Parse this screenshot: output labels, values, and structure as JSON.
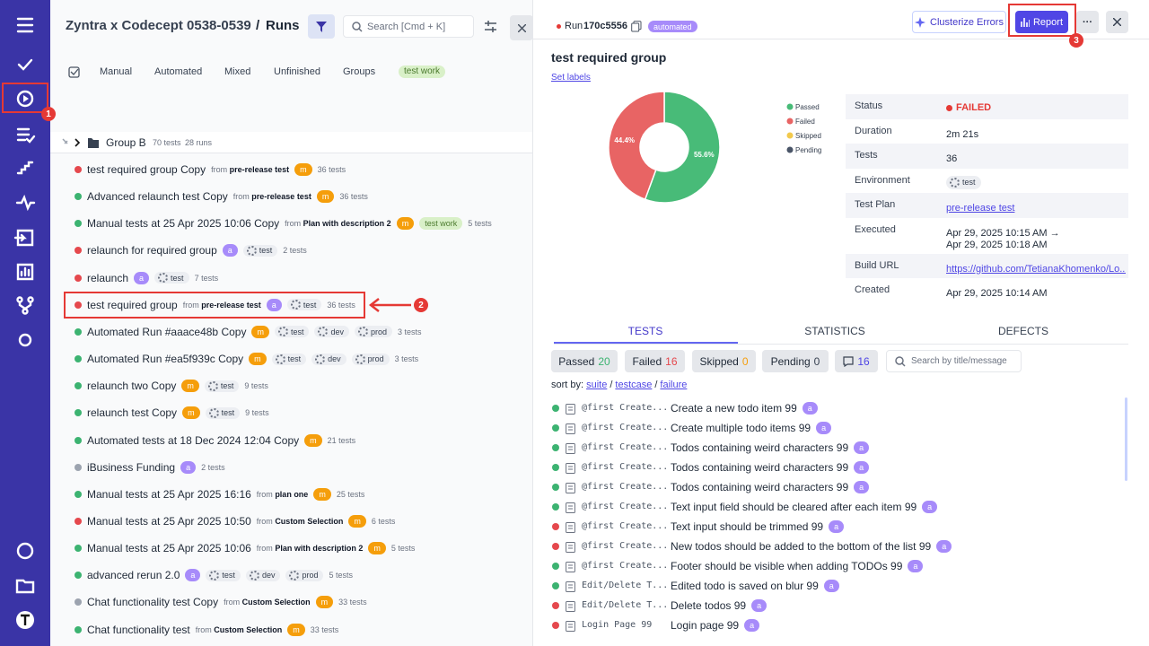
{
  "header": {
    "project": "Zyntra x Codecept 0538-0539",
    "separator": "/",
    "page": "Runs",
    "search_placeholder": "Search [Cmd + K]"
  },
  "filters": [
    "Manual",
    "Automated",
    "Mixed",
    "Unfinished",
    "Groups",
    "test work"
  ],
  "group": {
    "name": "Group B",
    "tests": "70 tests",
    "runs": "28 runs"
  },
  "from_label": "from",
  "runs": [
    {
      "status": "failed",
      "title": "test required group Copy",
      "source": "pre-release test",
      "badge": "m",
      "tags": [],
      "tests": "36 tests"
    },
    {
      "status": "passed",
      "title": "Advanced relaunch test Copy",
      "source": "pre-release test",
      "badge": "m",
      "tags": [],
      "tests": "36 tests"
    },
    {
      "status": "passed",
      "title": "Manual tests at 25 Apr 2025 10:06 Copy",
      "source": "Plan with description 2",
      "badge": "m",
      "label": "test work",
      "tags": [],
      "tests": "5 tests"
    },
    {
      "status": "failed",
      "title": "relaunch for required group",
      "badge": "a",
      "tags": [
        "test"
      ],
      "tests": "2 tests"
    },
    {
      "status": "failed",
      "title": "relaunch",
      "badge": "a",
      "tags": [
        "test"
      ],
      "tests": "7 tests"
    },
    {
      "status": "failed",
      "title": "test required group",
      "source": "pre-release test",
      "badge": "a",
      "tags": [
        "test"
      ],
      "tests": "36 tests"
    },
    {
      "status": "passed",
      "title": "Automated Run #aaace48b Copy",
      "badge": "m",
      "tags": [
        "test",
        "dev",
        "prod"
      ],
      "tests": "3 tests"
    },
    {
      "status": "passed",
      "title": "Automated Run #ea5f939c Copy",
      "badge": "m",
      "tags": [
        "test",
        "dev",
        "prod"
      ],
      "tests": "3 tests"
    },
    {
      "status": "passed",
      "title": "relaunch two Copy",
      "badge": "m",
      "tags": [
        "test"
      ],
      "tests": "9 tests"
    },
    {
      "status": "passed",
      "title": "relaunch test Copy",
      "badge": "m",
      "tags": [
        "test"
      ],
      "tests": "9 tests"
    },
    {
      "status": "passed",
      "title": "Automated tests at 18 Dec 2024 12:04 Copy",
      "badge": "m",
      "tags": [],
      "tests": "21 tests"
    },
    {
      "status": "unfinished",
      "title": "iBusiness Funding",
      "badge": "a",
      "tags": [],
      "tests": "2 tests"
    },
    {
      "status": "passed",
      "title": "Manual tests at 25 Apr 2025 16:16",
      "source": "plan one",
      "badge": "m",
      "tags": [],
      "tests": "25 tests"
    },
    {
      "status": "failed",
      "title": "Manual tests at 25 Apr 2025 10:50",
      "source": "Custom Selection",
      "badge": "m",
      "tags": [],
      "tests": "6 tests"
    },
    {
      "status": "passed",
      "title": "Manual tests at 25 Apr 2025 10:06",
      "source": "Plan with description 2",
      "badge": "m",
      "tags": [],
      "tests": "5 tests"
    },
    {
      "status": "passed",
      "title": "advanced rerun 2.0",
      "badge": "a",
      "tags": [
        "test",
        "dev",
        "prod"
      ],
      "tests": "5 tests"
    },
    {
      "status": "unfinished",
      "title": "Chat functionality test Copy",
      "source": "Custom Selection",
      "badge": "m",
      "tags": [],
      "tests": "33 tests"
    },
    {
      "status": "passed",
      "title": "Chat functionality test",
      "source": "Custom Selection",
      "badge": "m",
      "tags": [],
      "tests": "33 tests"
    }
  ],
  "run": {
    "label": "Run",
    "id": "170c5556",
    "type": "automated",
    "buttons": [
      "Clusterize Errors",
      "Report",
      "···"
    ],
    "title": "test required group",
    "set_labels": "Set labels"
  },
  "chart_data": {
    "type": "pie",
    "categories": [
      "Passed",
      "Failed",
      "Skipped",
      "Pending"
    ],
    "values": [
      55.6,
      44.4,
      0,
      0
    ],
    "value_labels": [
      "55.6%",
      "44.4%",
      null,
      null
    ],
    "colors": [
      "#48bb78",
      "#e86464",
      "#f2c94c",
      "#4a5568"
    ]
  },
  "details": [
    {
      "label": "Status",
      "value": "FAILED"
    },
    {
      "label": "Duration",
      "value": "2m 21s"
    },
    {
      "label": "Tests",
      "value": "36"
    },
    {
      "label": "Environment",
      "value": "test"
    },
    {
      "label": "Test Plan",
      "value": "pre-release test"
    },
    {
      "label": "Executed",
      "value": "Apr 29, 2025 10:15 AM →",
      "value2": "Apr 29, 2025 10:18 AM"
    },
    {
      "label": "Build URL",
      "value": "https://github.com/TetianaKhomenko/Lo..."
    },
    {
      "label": "Created",
      "value": "Apr 29, 2025 10:14 AM"
    }
  ],
  "tabs": [
    "TESTS",
    "STATISTICS",
    "DEFECTS"
  ],
  "tests": {
    "counts": [
      {
        "label": "Passed",
        "count": 20
      },
      {
        "label": "Failed",
        "count": 16
      },
      {
        "label": "Skipped",
        "count": 0
      },
      {
        "label": "Pending",
        "count": 0
      }
    ],
    "comments": 16,
    "search_placeholder": "Search by title/message",
    "sort": {
      "label": "sort by:",
      "options": [
        "suite",
        "testcase",
        "failure"
      ],
      "separator": "/"
    },
    "badge": "a",
    "rows": [
      {
        "status": "passed",
        "suite": "@first Create...",
        "title": "Create a new todo item 99"
      },
      {
        "status": "passed",
        "suite": "@first Create...",
        "title": "Create multiple todo items 99"
      },
      {
        "status": "passed",
        "suite": "@first Create...",
        "title": "Todos containing weird characters 99"
      },
      {
        "status": "passed",
        "suite": "@first Create...",
        "title": "Todos containing weird characters 99"
      },
      {
        "status": "passed",
        "suite": "@first Create...",
        "title": "Todos containing weird characters 99"
      },
      {
        "status": "passed",
        "suite": "@first Create...",
        "title": "Text input field should be cleared after each item 99"
      },
      {
        "status": "failed",
        "suite": "@first Create...",
        "title": "Text input should be trimmed 99"
      },
      {
        "status": "failed",
        "suite": "@first Create...",
        "title": "New todos should be added to the bottom of the list 99"
      },
      {
        "status": "passed",
        "suite": "@first Create...",
        "title": "Footer should be visible when adding TODOs 99"
      },
      {
        "status": "passed",
        "suite": "Edit/Delete T...",
        "title": "Edited todo is saved on blur 99"
      },
      {
        "status": "failed",
        "suite": "Edit/Delete T...",
        "title": "Delete todos 99"
      },
      {
        "status": "failed",
        "suite": "Login Page 99",
        "title": "Login page 99"
      }
    ]
  },
  "annotations": [
    "1",
    "2",
    "3"
  ]
}
